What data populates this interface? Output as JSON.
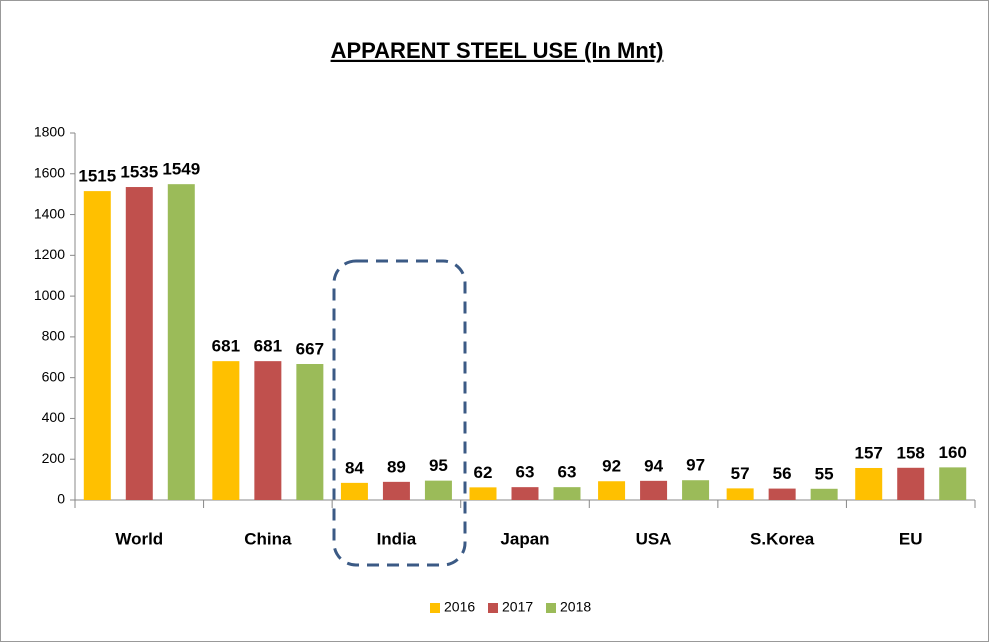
{
  "chart_data": {
    "type": "bar",
    "title": "APPARENT STEEL USE (In Mnt)",
    "categories": [
      "World",
      "China",
      "India",
      "Japan",
      "USA",
      "S.Korea",
      "EU"
    ],
    "series": [
      {
        "name": "2016",
        "color": "#ffc000",
        "values": [
          1515,
          681,
          84,
          62,
          92,
          57,
          157
        ]
      },
      {
        "name": "2017",
        "color": "#c0504d",
        "values": [
          1535,
          681,
          89,
          63,
          94,
          56,
          158
        ]
      },
      {
        "name": "2018",
        "color": "#9bbb59",
        "values": [
          1549,
          667,
          95,
          63,
          97,
          55,
          160
        ]
      }
    ],
    "ylim": [
      0,
      1800
    ],
    "yticks": [
      0,
      200,
      400,
      600,
      800,
      1000,
      1200,
      1400,
      1600,
      1800
    ],
    "legend": "bottom"
  }
}
